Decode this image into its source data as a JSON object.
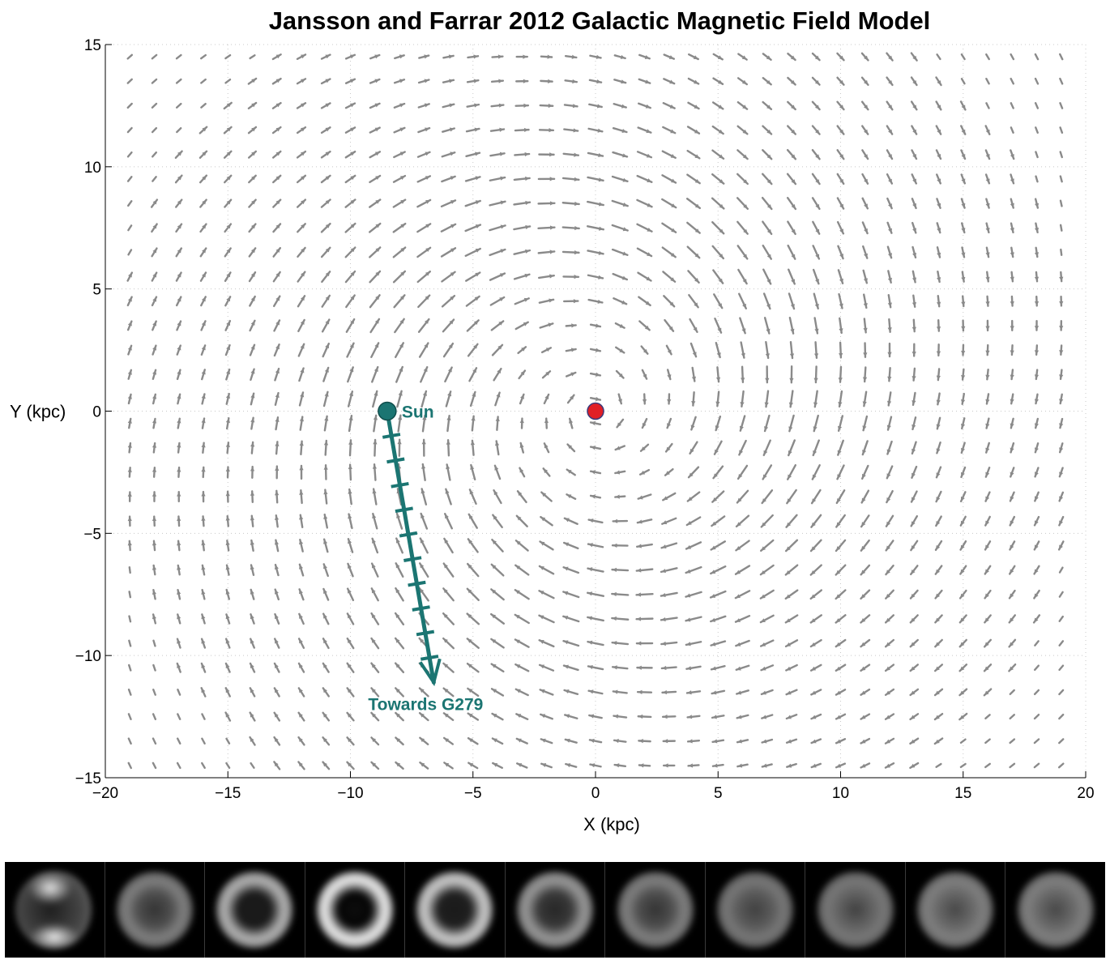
{
  "chart_data": {
    "type": "quiver",
    "title": "Jansson and Farrar 2012 Galactic Magnetic Field Model",
    "xlabel": "X (kpc)",
    "ylabel": "Y (kpc)",
    "xlim": [
      -20,
      20
    ],
    "ylim": [
      -15,
      15
    ],
    "xticks": [
      -20,
      -15,
      -10,
      -5,
      0,
      5,
      10,
      15,
      20
    ],
    "yticks": [
      -15,
      -10,
      -5,
      0,
      5,
      10,
      15
    ],
    "grid": "dotted",
    "field_color": "#8a8a8a",
    "field_grid_spacing_kpc": 1,
    "galactic_center": {
      "x": 0,
      "y": 0,
      "color": "#e11f26"
    },
    "sun": {
      "label": "Sun",
      "x": -8.5,
      "y": 0,
      "color": "#1b7572"
    },
    "line_of_sight": {
      "label": "Towards G279",
      "from": [
        -8.5,
        0
      ],
      "to": [
        -6.6,
        -11.1
      ],
      "tick_count": 10,
      "color": "#1b7572"
    }
  },
  "strip": {
    "panel_count": 11,
    "panels": [
      {
        "inner": 0.06,
        "ring": 0.55,
        "dark": 0.0
      },
      {
        "inner": 0.3,
        "ring": 0.5,
        "dark": 0.2
      },
      {
        "inner": 0.1,
        "ring": 0.7,
        "dark": 0.1
      },
      {
        "inner": 0.02,
        "ring": 0.92,
        "dark": 0.05
      },
      {
        "inner": 0.12,
        "ring": 0.8,
        "dark": 0.1
      },
      {
        "inner": 0.22,
        "ring": 0.6,
        "dark": 0.15
      },
      {
        "inner": 0.3,
        "ring": 0.5,
        "dark": 0.2
      },
      {
        "inner": 0.35,
        "ring": 0.47,
        "dark": 0.25
      },
      {
        "inner": 0.38,
        "ring": 0.47,
        "dark": 0.25
      },
      {
        "inner": 0.4,
        "ring": 0.5,
        "dark": 0.28
      },
      {
        "inner": 0.4,
        "ring": 0.5,
        "dark": 0.28
      }
    ]
  }
}
